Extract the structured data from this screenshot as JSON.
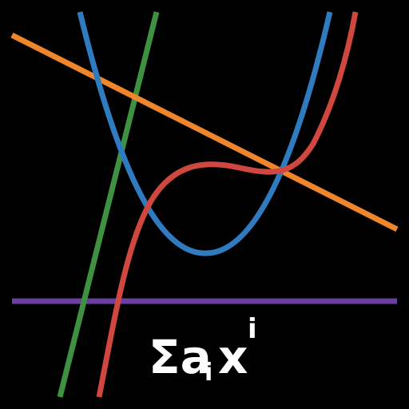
{
  "app_icon": {
    "background": "#000000",
    "formula": {
      "symbol": "Σa",
      "subscript": "i",
      "base": "x",
      "superscript": "i",
      "color": "#ffffff"
    },
    "curves": [
      {
        "name": "constant-polynomial-line",
        "color": "#6a3fa0"
      },
      {
        "name": "linear-polynomial-line-green",
        "color": "#3f9142"
      },
      {
        "name": "linear-polynomial-line-orange",
        "color": "#f0862c"
      },
      {
        "name": "quadratic-polynomial-curve",
        "color": "#2f7bc0"
      },
      {
        "name": "cubic-polynomial-curve",
        "color": "#d0473f"
      }
    ]
  }
}
